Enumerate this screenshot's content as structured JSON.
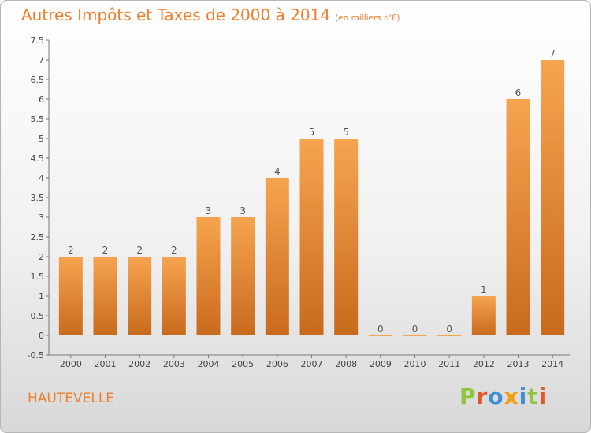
{
  "header": {
    "title": "Autres Impôts et Taxes de 2000 à 2014",
    "unit": "(en milliers d'€)"
  },
  "footer": {
    "commune": "HAUTEVELLE",
    "logo_text": "Proxiti"
  },
  "colors": {
    "title": "#f07d2a",
    "bar_light": "#f6a450",
    "bar_dark": "#c86a1c",
    "logo_letters": [
      "#8fc43c",
      "#e5572a",
      "#3d8fd4",
      "#f0a012",
      "#3d8fd4",
      "#8fc43c",
      "#e5572a"
    ]
  },
  "chart_data": {
    "type": "bar",
    "title": "Autres Impôts et Taxes de 2000 à 2014",
    "subtitle": "(en milliers d'€)",
    "xlabel": "",
    "ylabel": "",
    "categories": [
      "2000",
      "2001",
      "2002",
      "2003",
      "2004",
      "2005",
      "2006",
      "2007",
      "2008",
      "2009",
      "2010",
      "2011",
      "2012",
      "2013",
      "2014"
    ],
    "values": [
      2,
      2,
      2,
      2,
      3,
      3,
      4,
      5,
      5,
      0,
      0,
      0,
      1,
      6,
      7
    ],
    "data_labels": [
      "2",
      "2",
      "2",
      "2",
      "3",
      "3",
      "4",
      "5",
      "5",
      "0",
      "0",
      "0",
      "1",
      "6",
      "7"
    ],
    "yticks": [
      "-0.5",
      "0",
      "0.5",
      "1",
      "1.5",
      "2",
      "2.5",
      "3",
      "3.5",
      "4",
      "4.5",
      "5",
      "5.5",
      "6",
      "6.5",
      "7",
      "7.5"
    ],
    "ylim": [
      -0.5,
      7.5
    ],
    "grid": false,
    "legend": "none"
  }
}
